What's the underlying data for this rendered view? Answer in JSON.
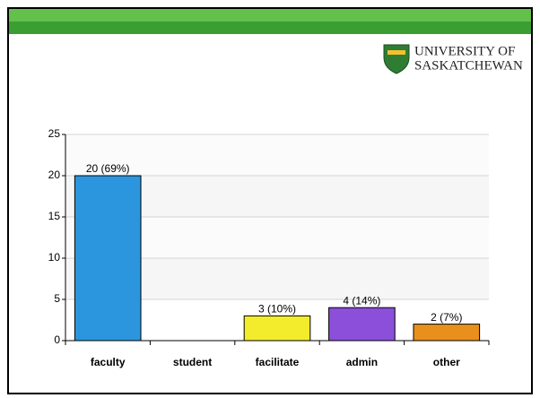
{
  "logo": {
    "line1": "UNIVERSITY OF",
    "line2": "SASKATCHEWAN"
  },
  "chart_data": {
    "type": "bar",
    "categories": [
      "faculty",
      "student",
      "facilitate",
      "admin",
      "other"
    ],
    "values": [
      20,
      0,
      3,
      4,
      2
    ],
    "value_labels": [
      "20 (69%)",
      null,
      "3 (10%)",
      "4 (14%)",
      "2 (7%)"
    ],
    "colors": [
      "#2b96de",
      "#c0c0c0",
      "#f2ec2c",
      "#8b4fd9",
      "#e98f1c"
    ],
    "ylim": [
      0,
      25
    ],
    "yticks": [
      0,
      5,
      10,
      15,
      20,
      25
    ],
    "grid": true
  }
}
